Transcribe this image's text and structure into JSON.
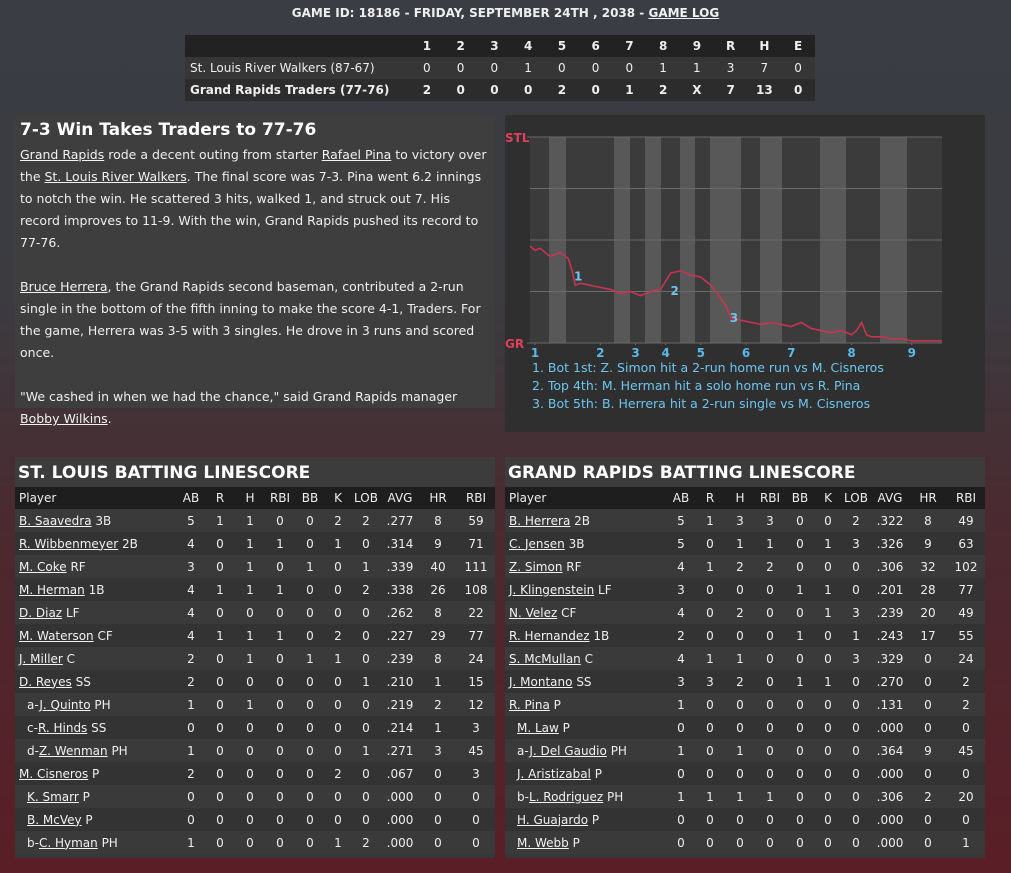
{
  "header": {
    "segments": [
      "GAME ID: 18186 - FRIDAY, SEPTEMBER 24TH , 2038 - ",
      {
        "link": "GAME LOG"
      }
    ]
  },
  "linescore": {
    "columns": [
      "1",
      "2",
      "3",
      "4",
      "5",
      "6",
      "7",
      "8",
      "9",
      "R",
      "H",
      "E"
    ],
    "rows": [
      {
        "team": "St. Louis River Walkers (87-67)",
        "cells": [
          "0",
          "0",
          "0",
          "1",
          "0",
          "0",
          "0",
          "1",
          "1",
          "3",
          "7",
          "0"
        ],
        "bold": false
      },
      {
        "team": "Grand Rapids Traders (77-76)",
        "cells": [
          "2",
          "0",
          "0",
          "0",
          "2",
          "0",
          "1",
          "2",
          "X",
          "7",
          "13",
          "0"
        ],
        "bold": true
      }
    ]
  },
  "article": {
    "title": "7-3 Win Takes Traders to 77-76",
    "paragraphs": [
      [
        {
          "link": "Grand Rapids"
        },
        " rode a decent outing from starter ",
        {
          "link": "Rafael Pina"
        },
        " to victory over the ",
        {
          "link": "St. Louis River Walkers"
        },
        ". The final score was 7-3. Pina went 6.2 innings to notch the win. He scattered 3 hits, walked 1, and struck out 7. His record improves to 11-9. With the win, Grand Rapids pushed its record to 77-76."
      ],
      [
        {
          "link": "Bruce Herrera"
        },
        ", the Grand Rapids second baseman, contributed a 2-run single in the bottom of the fifth inning to make the score 4-1, Traders. For the game, Herrera was 3-5 with 3 singles. He drove in 3 runs and scored once."
      ],
      [
        "\"We cashed in when we had the chance,\" said Grand Rapids manager ",
        {
          "link": "Bobby Wilkins"
        },
        "."
      ]
    ]
  },
  "chart_data": {
    "type": "line",
    "color": "#c8344f",
    "x": [
      0,
      1,
      2,
      3,
      4,
      6,
      7.6,
      8.4,
      9,
      10,
      12,
      14,
      16,
      18,
      20,
      22,
      24,
      26,
      27,
      28,
      30,
      32,
      34,
      36,
      37.6,
      39,
      40,
      42,
      44,
      46,
      48,
      50,
      52,
      54,
      56,
      58,
      60,
      62,
      64,
      65,
      66,
      67,
      68,
      70,
      72,
      74,
      76,
      78,
      80,
      82
    ],
    "values": [
      47,
      45,
      46,
      44,
      42,
      44,
      41,
      35,
      28,
      29,
      28,
      27,
      26,
      24,
      25,
      23,
      25,
      26,
      30,
      34,
      35,
      33,
      32,
      28,
      23,
      18,
      12,
      11,
      10,
      9,
      10,
      9,
      8,
      10,
      7,
      6,
      5,
      6,
      4,
      6,
      10,
      4,
      3,
      3,
      2,
      2,
      1,
      1,
      1,
      1
    ],
    "xlim": [
      0,
      82
    ],
    "ylim": [
      0,
      100
    ],
    "yticks": [
      {
        "value": 100,
        "label": "STL"
      },
      {
        "value": 0,
        "label": "GR"
      }
    ],
    "xticks": [
      {
        "value": 1,
        "label": "1"
      },
      {
        "value": 14,
        "label": "2"
      },
      {
        "value": 21,
        "label": "3"
      },
      {
        "value": 27,
        "label": "4"
      },
      {
        "value": 34,
        "label": "5"
      },
      {
        "value": 43,
        "label": "6"
      },
      {
        "value": 52,
        "label": "7"
      },
      {
        "value": 64,
        "label": "8"
      },
      {
        "value": 76,
        "label": "9"
      }
    ],
    "annotations": [
      {
        "label": "1",
        "x": 9.6,
        "y": 32
      },
      {
        "label": "2",
        "x": 28.8,
        "y": 25
      },
      {
        "label": "3",
        "x": 40.6,
        "y": 12
      }
    ],
    "notes": [
      "1. Bot 1st: Z. Simon hit a 2-run home run vs M. Cisneros",
      "2. Top 4th: M. Herman hit a solo home run vs R. Pina",
      "3. Bot 5th: B. Herrera hit a 2-run single vs M. Cisneros"
    ],
    "grid": true
  },
  "batting": [
    {
      "title": "ST. LOUIS BATTING LINESCORE",
      "columns": [
        "Player",
        "AB",
        "R",
        "H",
        "RBI",
        "BB",
        "K",
        "LOB",
        "AVG",
        "HR",
        "RBI"
      ],
      "rows": [
        {
          "name": "B. Saavedra",
          "pos": "3B",
          "sub": false,
          "stats": [
            "5",
            "1",
            "1",
            "0",
            "0",
            "2",
            "2",
            ".277",
            "8",
            "59"
          ]
        },
        {
          "name": "R. Wibbenmeyer",
          "pos": "2B",
          "sub": false,
          "stats": [
            "4",
            "0",
            "1",
            "1",
            "0",
            "1",
            "0",
            ".314",
            "9",
            "71"
          ]
        },
        {
          "name": "M. Coke",
          "pos": "RF",
          "sub": false,
          "stats": [
            "3",
            "0",
            "1",
            "0",
            "1",
            "0",
            "1",
            ".339",
            "40",
            "111"
          ]
        },
        {
          "name": "M. Herman",
          "pos": "1B",
          "sub": false,
          "stats": [
            "4",
            "1",
            "1",
            "1",
            "0",
            "0",
            "2",
            ".338",
            "26",
            "108"
          ]
        },
        {
          "name": "D. Diaz",
          "pos": "LF",
          "sub": false,
          "stats": [
            "4",
            "0",
            "0",
            "0",
            "0",
            "0",
            "0",
            ".262",
            "8",
            "22"
          ]
        },
        {
          "name": "M. Waterson",
          "pos": "CF",
          "sub": false,
          "stats": [
            "4",
            "1",
            "1",
            "1",
            "0",
            "2",
            "0",
            ".227",
            "29",
            "77"
          ]
        },
        {
          "name": "J. Miller",
          "pos": "C",
          "sub": false,
          "stats": [
            "2",
            "0",
            "1",
            "0",
            "1",
            "1",
            "0",
            ".239",
            "8",
            "24"
          ]
        },
        {
          "name": "D. Reyes",
          "pos": "SS",
          "sub": false,
          "stats": [
            "2",
            "0",
            "0",
            "0",
            "0",
            "0",
            "1",
            ".210",
            "1",
            "15"
          ]
        },
        {
          "prefix": "a-",
          "name": "J. Quinto",
          "pos": "PH",
          "sub": true,
          "stats": [
            "1",
            "0",
            "1",
            "0",
            "0",
            "0",
            "0",
            ".219",
            "2",
            "12"
          ]
        },
        {
          "prefix": "c-",
          "name": "R. Hinds",
          "pos": "SS",
          "sub": true,
          "stats": [
            "0",
            "0",
            "0",
            "0",
            "0",
            "0",
            "0",
            ".214",
            "1",
            "3"
          ]
        },
        {
          "prefix": "d-",
          "name": "Z. Wenman",
          "pos": "PH",
          "sub": true,
          "stats": [
            "1",
            "0",
            "0",
            "0",
            "0",
            "0",
            "1",
            ".271",
            "3",
            "45"
          ]
        },
        {
          "name": "M. Cisneros",
          "pos": "P",
          "sub": false,
          "stats": [
            "2",
            "0",
            "0",
            "0",
            "0",
            "2",
            "0",
            ".067",
            "0",
            "3"
          ]
        },
        {
          "name": "K. Smarr",
          "pos": "P",
          "sub": true,
          "stats": [
            "0",
            "0",
            "0",
            "0",
            "0",
            "0",
            "0",
            ".000",
            "0",
            "0"
          ]
        },
        {
          "name": "B. McVey",
          "pos": "P",
          "sub": true,
          "stats": [
            "0",
            "0",
            "0",
            "0",
            "0",
            "0",
            "0",
            ".000",
            "0",
            "0"
          ]
        },
        {
          "prefix": "b-",
          "name": "C. Hyman",
          "pos": "PH",
          "sub": true,
          "stats": [
            "1",
            "0",
            "0",
            "0",
            "0",
            "1",
            "2",
            ".000",
            "0",
            "0"
          ]
        }
      ]
    },
    {
      "title": "GRAND RAPIDS BATTING LINESCORE",
      "columns": [
        "Player",
        "AB",
        "R",
        "H",
        "RBI",
        "BB",
        "K",
        "LOB",
        "AVG",
        "HR",
        "RBI"
      ],
      "rows": [
        {
          "name": "B. Herrera",
          "pos": "2B",
          "sub": false,
          "stats": [
            "5",
            "1",
            "3",
            "3",
            "0",
            "0",
            "2",
            ".322",
            "8",
            "49"
          ]
        },
        {
          "name": "C. Jensen",
          "pos": "3B",
          "sub": false,
          "stats": [
            "5",
            "0",
            "1",
            "1",
            "0",
            "1",
            "3",
            ".326",
            "9",
            "63"
          ]
        },
        {
          "name": "Z. Simon",
          "pos": "RF",
          "sub": false,
          "stats": [
            "4",
            "1",
            "2",
            "2",
            "0",
            "0",
            "0",
            ".306",
            "32",
            "102"
          ]
        },
        {
          "name": "J. Klingenstein",
          "pos": "LF",
          "sub": false,
          "stats": [
            "3",
            "0",
            "0",
            "0",
            "1",
            "1",
            "0",
            ".201",
            "28",
            "77"
          ]
        },
        {
          "name": "N. Velez",
          "pos": "CF",
          "sub": false,
          "stats": [
            "4",
            "0",
            "2",
            "0",
            "0",
            "1",
            "3",
            ".239",
            "20",
            "49"
          ]
        },
        {
          "name": "R. Hernandez",
          "pos": "1B",
          "sub": false,
          "stats": [
            "2",
            "0",
            "0",
            "0",
            "1",
            "0",
            "1",
            ".243",
            "17",
            "55"
          ]
        },
        {
          "name": "S. McMullan",
          "pos": "C",
          "sub": false,
          "stats": [
            "4",
            "1",
            "1",
            "0",
            "0",
            "0",
            "3",
            ".329",
            "0",
            "24"
          ]
        },
        {
          "name": "J. Montano",
          "pos": "SS",
          "sub": false,
          "stats": [
            "3",
            "3",
            "2",
            "0",
            "1",
            "1",
            "0",
            ".270",
            "0",
            "2"
          ]
        },
        {
          "name": "R. Pina",
          "pos": "P",
          "sub": false,
          "stats": [
            "1",
            "0",
            "0",
            "0",
            "0",
            "0",
            "0",
            ".131",
            "0",
            "2"
          ]
        },
        {
          "name": "M. Law",
          "pos": "P",
          "sub": true,
          "stats": [
            "0",
            "0",
            "0",
            "0",
            "0",
            "0",
            "0",
            ".000",
            "0",
            "0"
          ]
        },
        {
          "prefix": "a-",
          "name": "J. Del Gaudio",
          "pos": "PH",
          "sub": true,
          "stats": [
            "1",
            "0",
            "1",
            "0",
            "0",
            "0",
            "0",
            ".364",
            "9",
            "45"
          ]
        },
        {
          "name": "J. Aristizabal",
          "pos": "P",
          "sub": true,
          "stats": [
            "0",
            "0",
            "0",
            "0",
            "0",
            "0",
            "0",
            ".000",
            "0",
            "0"
          ]
        },
        {
          "prefix": "b-",
          "name": "L. Rodriguez",
          "pos": "PH",
          "sub": true,
          "stats": [
            "1",
            "1",
            "1",
            "1",
            "0",
            "0",
            "0",
            ".306",
            "2",
            "20"
          ]
        },
        {
          "name": "H. Guajardo",
          "pos": "P",
          "sub": true,
          "stats": [
            "0",
            "0",
            "0",
            "0",
            "0",
            "0",
            "0",
            ".000",
            "0",
            "0"
          ]
        },
        {
          "name": "M. Webb",
          "pos": "P",
          "sub": true,
          "stats": [
            "0",
            "0",
            "0",
            "0",
            "0",
            "0",
            "0",
            ".000",
            "0",
            "1"
          ]
        }
      ]
    }
  ]
}
